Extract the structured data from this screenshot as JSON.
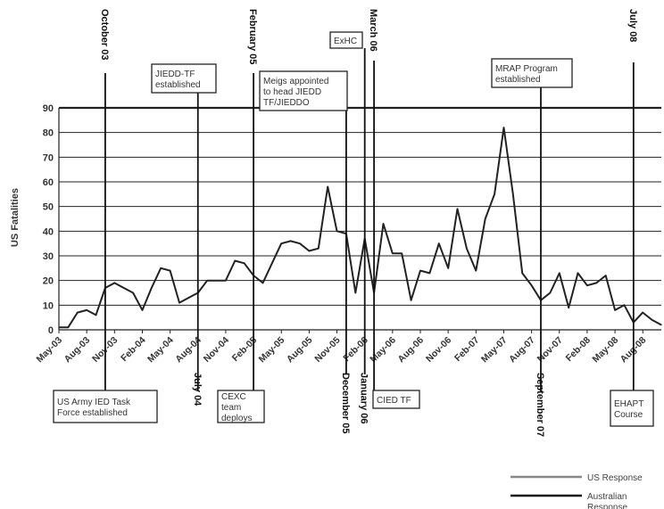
{
  "chart_data": {
    "type": "line",
    "ylabel": "US Fatalities",
    "xlabel": "",
    "ylim": [
      0,
      90
    ],
    "yticks": [
      0,
      10,
      20,
      30,
      40,
      50,
      60,
      70,
      80,
      90
    ],
    "grid": "horizontal",
    "x_tick_labels": [
      "May-03",
      "Aug-03",
      "Nov-03",
      "Feb-04",
      "May-04",
      "Aug-04",
      "Nov-04",
      "Feb-05",
      "May-05",
      "Aug-05",
      "Nov-05",
      "Feb-06",
      "May-06",
      "Aug-06",
      "Nov-06",
      "Feb-07",
      "May-07",
      "Aug-07",
      "Nov-07",
      "Feb-08",
      "May-08",
      "Aug-08"
    ],
    "series": [
      {
        "values": [
          1,
          1,
          7,
          8,
          6,
          17,
          19,
          17,
          15,
          8,
          17,
          25,
          24,
          11,
          13,
          15,
          20,
          20,
          20,
          28,
          27,
          22,
          19,
          27,
          35,
          36,
          35,
          32,
          33,
          58,
          40,
          39,
          15,
          37,
          15,
          43,
          31,
          31,
          12,
          24,
          23,
          35,
          25,
          49,
          33,
          24,
          45,
          55,
          82,
          55,
          23,
          18,
          12,
          15,
          23,
          9,
          23,
          18,
          19,
          22,
          8,
          10,
          3,
          7,
          4,
          2
        ]
      }
    ],
    "annotations": [
      {
        "id": "ann-oct03",
        "label": "October 03",
        "month": 5,
        "style": "label-top"
      },
      {
        "id": "ann-jiedd",
        "label": "JIEDD-TF established",
        "month": 15,
        "style": "box-top"
      },
      {
        "id": "ann-feb05",
        "label": "February 05",
        "month": 21,
        "style": "label-top"
      },
      {
        "id": "ann-meigs",
        "label": "Meigs appointed to head JIEDD TF/JIEDDO",
        "month": 31,
        "style": "box-top"
      },
      {
        "id": "ann-exhc",
        "label": "ExHC",
        "month": 33,
        "style": "box-top"
      },
      {
        "id": "ann-mar06",
        "label": "March 06",
        "month": 34,
        "style": "label-top"
      },
      {
        "id": "ann-mrap",
        "label": "MRAP Program established",
        "month": 52,
        "style": "box-top"
      },
      {
        "id": "ann-jul08",
        "label": "July 08",
        "month": 62,
        "style": "label-top"
      },
      {
        "id": "ann-usarmy",
        "label": "US Army IED Task Force established",
        "month": 5,
        "style": "box-bottom"
      },
      {
        "id": "ann-jul04",
        "label": "July 04",
        "month": 15,
        "style": "label-bottom"
      },
      {
        "id": "ann-cexc",
        "label": "CEXC team deploys",
        "month": 21,
        "style": "box-bottom"
      },
      {
        "id": "ann-dec05",
        "label": "December 05",
        "month": 31,
        "style": "label-bottom"
      },
      {
        "id": "ann-jan06",
        "label": "January 06",
        "month": 33,
        "style": "label-bottom"
      },
      {
        "id": "ann-cied",
        "label": "CIED TF",
        "month": 34,
        "style": "box-bottom"
      },
      {
        "id": "ann-sep07",
        "label": "September 07",
        "month": 52,
        "style": "label-bottom"
      },
      {
        "id": "ann-ehapt",
        "label": "EHAPT Course",
        "month": 62,
        "style": "box-bottom"
      }
    ],
    "legend": {
      "placement": "bottom-right",
      "items": [
        {
          "label": "US Response",
          "color": "#888888"
        },
        {
          "label": "Australian Response",
          "color": "#111111"
        }
      ]
    },
    "colors": {
      "line": "#222222",
      "grid": "#222222",
      "us_response": "#888888",
      "australian_response": "#111111"
    }
  }
}
